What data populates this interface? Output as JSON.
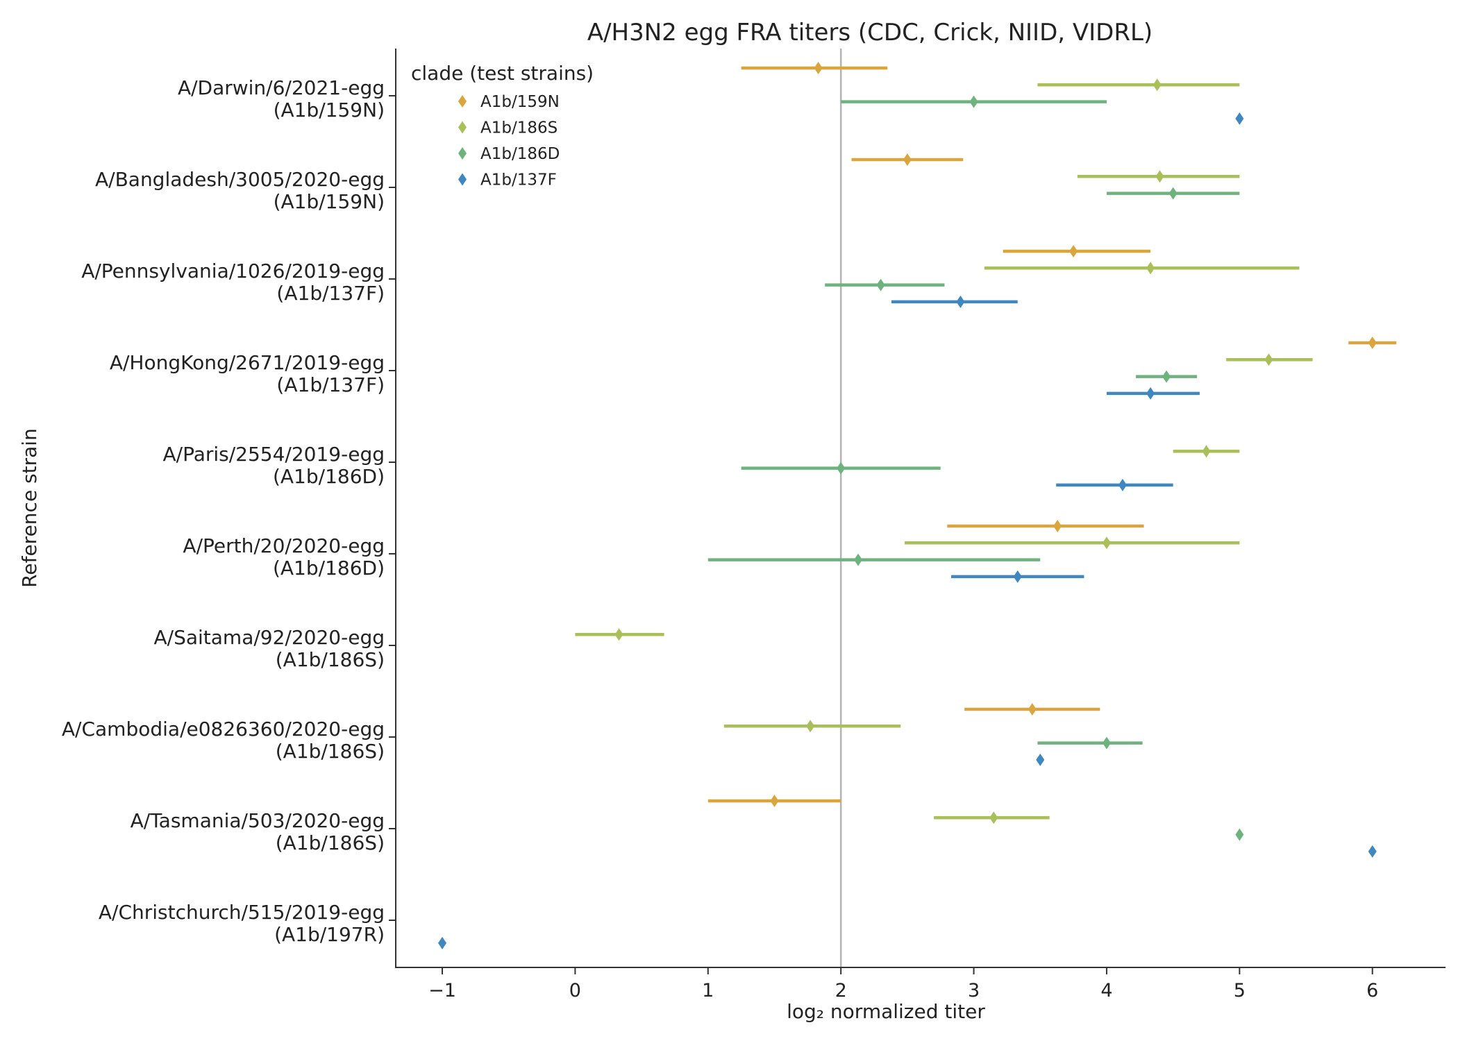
{
  "chart_data": {
    "type": "scatter",
    "title": "A/H3N2 egg FRA titers (CDC, Crick, NIID, VIDRL)",
    "xlabel": "log₂ normalized titer",
    "ylabel": "Reference strain",
    "xlim": [
      -1.35,
      6.55
    ],
    "xticks": [
      -1,
      0,
      1,
      2,
      3,
      4,
      5,
      6
    ],
    "xtick_labels": [
      "−1",
      "0",
      "1",
      "2",
      "3",
      "4",
      "5",
      "6"
    ],
    "reference_line_x": 2,
    "grid": false,
    "legend": {
      "title": "clade (test strains)",
      "placement": "top-left",
      "entries": [
        {
          "name": "A1b/159N",
          "color": "#dba53e"
        },
        {
          "name": "A1b/186S",
          "color": "#a9c05a"
        },
        {
          "name": "A1b/186D",
          "color": "#6eb37e"
        },
        {
          "name": "A1b/137F",
          "color": "#3f87c0"
        }
      ]
    },
    "categories": [
      {
        "strain": "A/Darwin/6/2021-egg",
        "clade": "(A1b/159N)"
      },
      {
        "strain": "A/Bangladesh/3005/2020-egg",
        "clade": "(A1b/159N)"
      },
      {
        "strain": "A/Pennsylvania/1026/2019-egg",
        "clade": "(A1b/137F)"
      },
      {
        "strain": "A/HongKong/2671/2019-egg",
        "clade": "(A1b/137F)"
      },
      {
        "strain": "A/Paris/2554/2019-egg",
        "clade": "(A1b/186D)"
      },
      {
        "strain": "A/Perth/20/2020-egg",
        "clade": "(A1b/186D)"
      },
      {
        "strain": "A/Saitama/92/2020-egg",
        "clade": "(A1b/186S)"
      },
      {
        "strain": "A/Cambodia/e0826360/2020-egg",
        "clade": "(A1b/186S)"
      },
      {
        "strain": "A/Tasmania/503/2020-egg",
        "clade": "(A1b/186S)"
      },
      {
        "strain": "A/Christchurch/515/2019-egg",
        "clade": "(A1b/197R)"
      }
    ],
    "series": [
      {
        "name": "A1b/159N",
        "color": "#dba53e",
        "points": [
          {
            "category": 0,
            "mean": 1.83,
            "low": 1.25,
            "high": 2.35
          },
          {
            "category": 1,
            "mean": 2.5,
            "low": 2.08,
            "high": 2.92
          },
          {
            "category": 2,
            "mean": 3.75,
            "low": 3.22,
            "high": 4.33
          },
          {
            "category": 3,
            "mean": 6.0,
            "low": 5.82,
            "high": 6.18
          },
          {
            "category": 5,
            "mean": 3.63,
            "low": 2.8,
            "high": 4.28
          },
          {
            "category": 7,
            "mean": 3.44,
            "low": 2.93,
            "high": 3.95
          },
          {
            "category": 8,
            "mean": 1.5,
            "low": 1.0,
            "high": 2.0
          }
        ]
      },
      {
        "name": "A1b/186S",
        "color": "#a9c05a",
        "points": [
          {
            "category": 0,
            "mean": 4.38,
            "low": 3.48,
            "high": 5.0
          },
          {
            "category": 1,
            "mean": 4.4,
            "low": 3.78,
            "high": 5.0
          },
          {
            "category": 2,
            "mean": 4.33,
            "low": 3.08,
            "high": 5.45
          },
          {
            "category": 3,
            "mean": 5.22,
            "low": 4.9,
            "high": 5.55
          },
          {
            "category": 4,
            "mean": 4.75,
            "low": 4.5,
            "high": 5.0
          },
          {
            "category": 5,
            "mean": 4.0,
            "low": 2.48,
            "high": 5.0
          },
          {
            "category": 6,
            "mean": 0.33,
            "low": 0.0,
            "high": 0.67
          },
          {
            "category": 7,
            "mean": 1.77,
            "low": 1.12,
            "high": 2.45
          },
          {
            "category": 8,
            "mean": 3.15,
            "low": 2.7,
            "high": 3.57
          }
        ]
      },
      {
        "name": "A1b/186D",
        "color": "#6eb37e",
        "points": [
          {
            "category": 0,
            "mean": 3.0,
            "low": 2.0,
            "high": 4.0
          },
          {
            "category": 1,
            "mean": 4.5,
            "low": 4.0,
            "high": 5.0
          },
          {
            "category": 2,
            "mean": 2.3,
            "low": 1.88,
            "high": 2.78
          },
          {
            "category": 3,
            "mean": 4.45,
            "low": 4.22,
            "high": 4.68
          },
          {
            "category": 4,
            "mean": 2.0,
            "low": 1.25,
            "high": 2.75
          },
          {
            "category": 5,
            "mean": 2.13,
            "low": 1.0,
            "high": 3.5
          },
          {
            "category": 7,
            "mean": 4.0,
            "low": 3.48,
            "high": 4.27
          },
          {
            "category": 8,
            "mean": 5.0,
            "low": 5.0,
            "high": 5.0
          }
        ]
      },
      {
        "name": "A1b/137F",
        "color": "#3f87c0",
        "points": [
          {
            "category": 0,
            "mean": 5.0,
            "low": 5.0,
            "high": 5.0
          },
          {
            "category": 2,
            "mean": 2.9,
            "low": 2.38,
            "high": 3.33
          },
          {
            "category": 3,
            "mean": 4.33,
            "low": 4.0,
            "high": 4.7
          },
          {
            "category": 4,
            "mean": 4.12,
            "low": 3.62,
            "high": 4.5
          },
          {
            "category": 5,
            "mean": 3.33,
            "low": 2.83,
            "high": 3.83
          },
          {
            "category": 7,
            "mean": 3.5,
            "low": 3.5,
            "high": 3.5
          },
          {
            "category": 8,
            "mean": 6.0,
            "low": 6.0,
            "high": 6.0
          },
          {
            "category": 9,
            "mean": -1.0,
            "low": -1.0,
            "high": -1.0
          }
        ]
      }
    ]
  }
}
